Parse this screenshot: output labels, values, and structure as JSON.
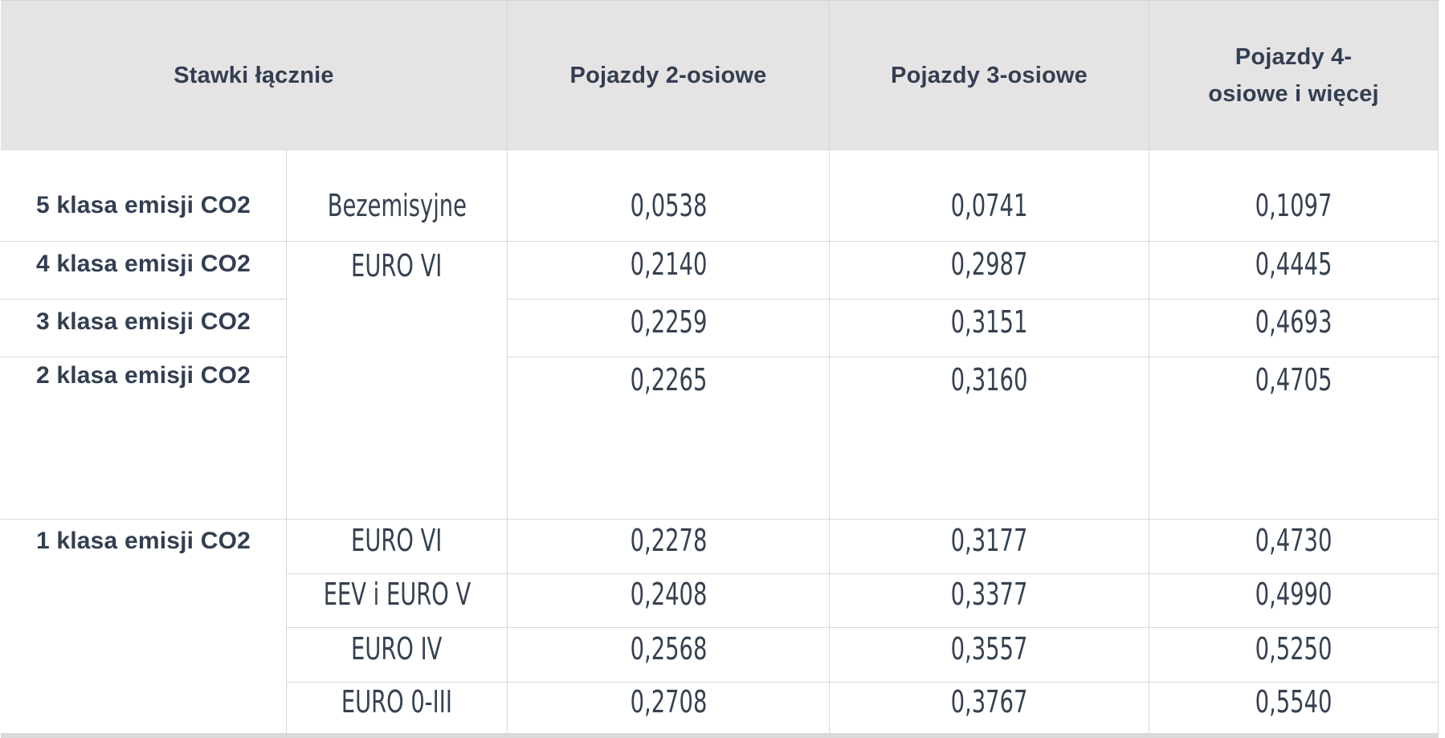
{
  "table_title": "Stawki łącznie",
  "header": {
    "col_group": "Stawki łącznie",
    "col_2axle": "Pojazdy 2-osiowe",
    "col_3axle": "Pojazdy 3-osiowe",
    "col_4axle": "Pojazdy 4-\nosiowe i więcej"
  },
  "rows": [
    {
      "klasa": "5 klasa emisji CO2",
      "euro": "Bezemisyjne",
      "v2": "0,0538",
      "v3": "0,0741",
      "v4": "0,1097"
    },
    {
      "klasa": "4 klasa emisji CO2",
      "euro": "EURO VI",
      "v2": "0,2140",
      "v3": "0,2987",
      "v4": "0,4445"
    },
    {
      "klasa": "3 klasa emisji CO2",
      "euro": "",
      "v2": "0,2259",
      "v3": "0,3151",
      "v4": "0,4693"
    },
    {
      "klasa": "2 klasa emisji CO2",
      "euro": "",
      "v2": "0,2265",
      "v3": "0,3160",
      "v4": "0,4705"
    },
    {
      "klasa": "1 klasa emisji CO2",
      "euro": "EURO VI",
      "v2": "0,2278",
      "v3": "0,3177",
      "v4": "0,4730"
    },
    {
      "klasa": "",
      "euro": "EEV i EURO V",
      "v2": "0,2408",
      "v3": "0,3377",
      "v4": "0,4990"
    },
    {
      "klasa": "",
      "euro": "EURO IV",
      "v2": "0,2568",
      "v3": "0,3557",
      "v4": "0,5250"
    },
    {
      "klasa": "",
      "euro": "EURO 0-III",
      "v2": "0,2708",
      "v3": "0,3767",
      "v4": "0,5540"
    }
  ],
  "colors": {
    "header_bg": "#e5e3e4",
    "border": "#d8d8d8",
    "text": "#333e50",
    "body_bg": "#ffffff",
    "bottom_strip": "#dbd9d9"
  }
}
